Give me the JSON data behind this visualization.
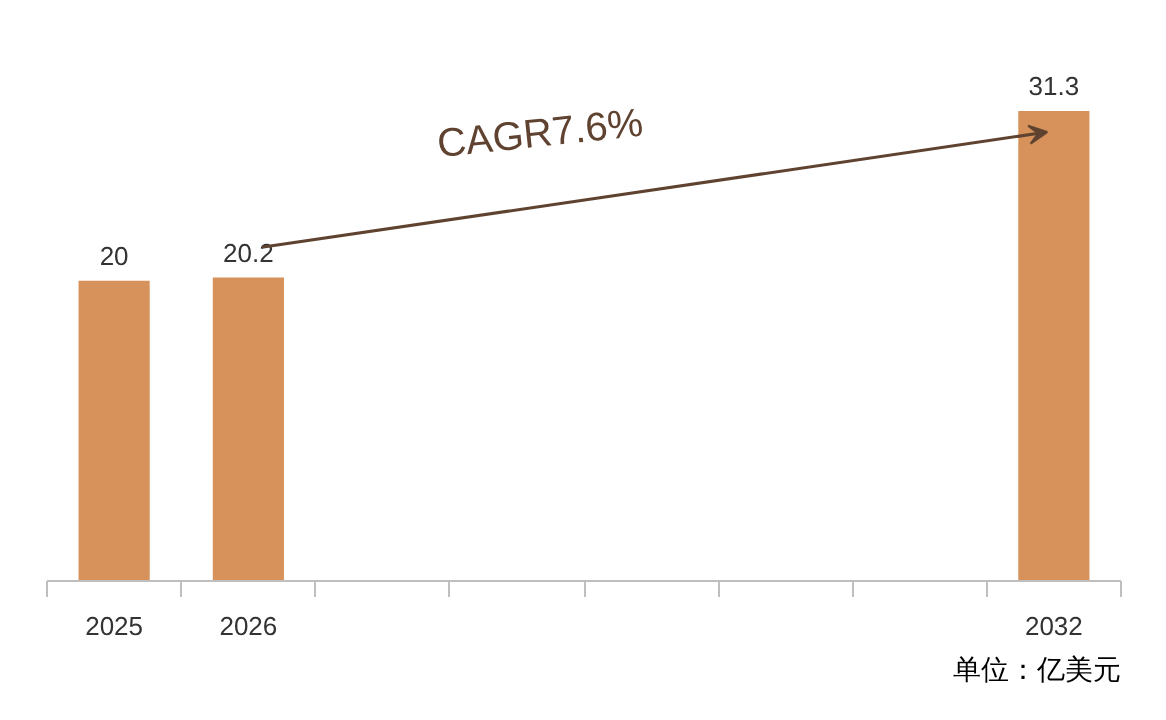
{
  "chart_data": {
    "type": "bar",
    "categories": [
      "2025",
      "2026",
      null,
      null,
      null,
      null,
      null,
      "2032"
    ],
    "values": [
      20,
      20.2,
      null,
      null,
      null,
      null,
      null,
      31.3
    ],
    "color": "#d6925a",
    "data_labels": true,
    "grid": false,
    "annotations": [
      "CAGR7.6%",
      "单位：亿美元"
    ]
  }
}
